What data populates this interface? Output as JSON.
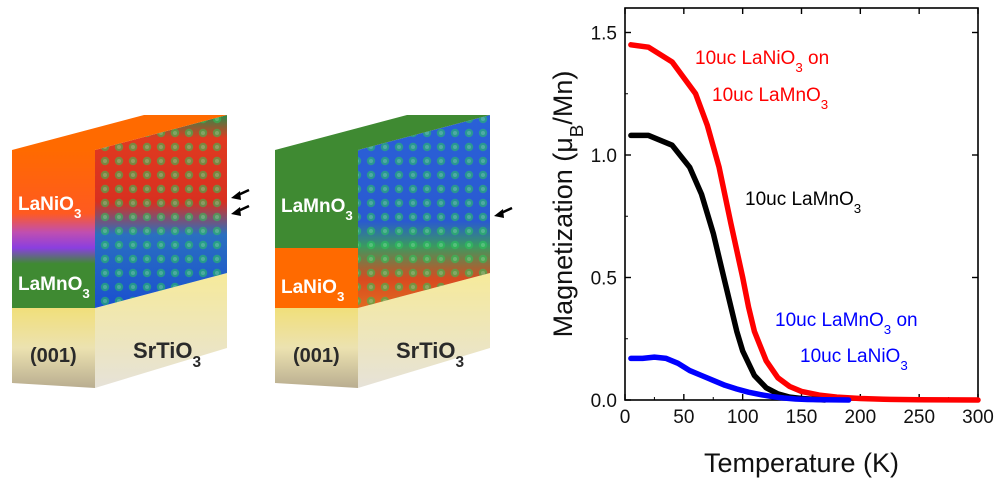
{
  "schematics": [
    {
      "top_layer": {
        "formula": "LaNiO",
        "sub": "3"
      },
      "bottom_layer": {
        "formula": "LaMnO",
        "sub": "3"
      },
      "substrate_face": "(001)",
      "substrate": {
        "formula": "SrTiO",
        "sub": "3"
      },
      "interface_arrows": 2
    },
    {
      "top_layer": {
        "formula": "LaMnO",
        "sub": "3"
      },
      "bottom_layer": {
        "formula": "LaNiO",
        "sub": "3"
      },
      "substrate_face": "(001)",
      "substrate": {
        "formula": "SrTiO",
        "sub": "3"
      },
      "interface_arrows": 1
    }
  ],
  "colors": {
    "lanio3": "#ff6a00",
    "lamno3": "#3f8a32",
    "substrate": "#f3e48a",
    "red_series": "#ff0000",
    "black_series": "#000000",
    "blue_series": "#0000ff"
  },
  "chart_data": {
    "type": "line",
    "xlabel": "Temperature (K)",
    "ylabel": {
      "pre": "Magnetization (μ",
      "sub": "B",
      "post": "/Mn)"
    },
    "xlim": [
      0,
      300
    ],
    "ylim": [
      0,
      1.6
    ],
    "xticks": [
      "0",
      "50",
      "100",
      "150",
      "200",
      "250",
      "300"
    ],
    "yticks": [
      "0.0",
      "0.5",
      "1.0",
      "1.5"
    ],
    "grid": false,
    "series": [
      {
        "label_lines": [
          [
            "10uc LaNiO",
            "3",
            " on"
          ],
          [
            "10uc LaMnO",
            "3",
            ""
          ]
        ],
        "color": "#ff0000",
        "x": [
          5,
          20,
          40,
          60,
          70,
          80,
          90,
          100,
          105,
          110,
          120,
          130,
          140,
          150,
          165,
          180,
          200,
          220,
          250,
          300
        ],
        "y": [
          1.45,
          1.44,
          1.38,
          1.25,
          1.12,
          0.95,
          0.72,
          0.5,
          0.38,
          0.28,
          0.16,
          0.09,
          0.055,
          0.035,
          0.02,
          0.012,
          0.006,
          0.003,
          0.001,
          0.0
        ]
      },
      {
        "label_lines": [
          [
            "10uc LaMnO",
            "3",
            ""
          ]
        ],
        "color": "#000000",
        "x": [
          5,
          20,
          40,
          55,
          65,
          75,
          85,
          95,
          100,
          110,
          120,
          130,
          140,
          150,
          160,
          170
        ],
        "y": [
          1.08,
          1.08,
          1.04,
          0.95,
          0.84,
          0.68,
          0.48,
          0.28,
          0.2,
          0.1,
          0.05,
          0.025,
          0.012,
          0.006,
          0.003,
          0.0
        ]
      },
      {
        "label_lines": [
          [
            "10uc LaMnO",
            "3",
            " on"
          ],
          [
            "10uc LaNiO",
            "3",
            ""
          ]
        ],
        "color": "#0000ff",
        "x": [
          5,
          15,
          25,
          35,
          45,
          55,
          65,
          75,
          85,
          95,
          105,
          115,
          125,
          135,
          145,
          155,
          170,
          190
        ],
        "y": [
          0.17,
          0.17,
          0.175,
          0.17,
          0.15,
          0.12,
          0.1,
          0.08,
          0.06,
          0.045,
          0.032,
          0.022,
          0.014,
          0.008,
          0.004,
          0.002,
          0.001,
          0.0
        ]
      }
    ]
  }
}
